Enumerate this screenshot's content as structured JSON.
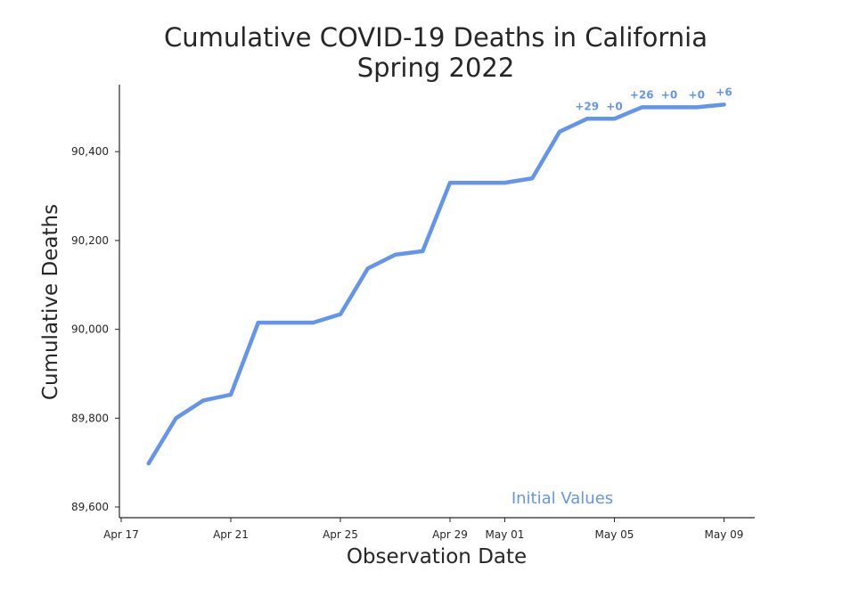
{
  "chart_data": {
    "type": "line",
    "title": "Cumulative COVID-19 Deaths in California",
    "subtitle": "Spring 2022",
    "xlabel": "Observation Date",
    "ylabel": "Cumulative Deaths",
    "x_type": "date",
    "xlim": [
      "2022-04-17",
      "2022-05-10"
    ],
    "ylim": [
      89580,
      90555
    ],
    "grid": false,
    "x_ticks": [
      {
        "date": "2022-04-17",
        "label": "Apr 17"
      },
      {
        "date": "2022-04-21",
        "label": "Apr 21"
      },
      {
        "date": "2022-04-25",
        "label": "Apr 25"
      },
      {
        "date": "2022-04-29",
        "label": "Apr 29"
      },
      {
        "date": "2022-05-01",
        "label": "May 01"
      },
      {
        "date": "2022-05-05",
        "label": "May 05"
      },
      {
        "date": "2022-05-09",
        "label": "May 09"
      }
    ],
    "y_ticks": [
      {
        "value": 89600,
        "label": "89,600"
      },
      {
        "value": 89800,
        "label": "89,800"
      },
      {
        "value": 90000,
        "label": "90,000"
      },
      {
        "value": 90200,
        "label": "90,200"
      },
      {
        "value": 90400,
        "label": "90,400"
      }
    ],
    "series": [
      {
        "name": "Initial Values",
        "color": "#6495ed",
        "x": [
          "2022-04-18",
          "2022-04-19",
          "2022-04-20",
          "2022-04-21",
          "2022-04-22",
          "2022-04-23",
          "2022-04-24",
          "2022-04-25",
          "2022-04-26",
          "2022-04-27",
          "2022-04-28",
          "2022-04-29",
          "2022-04-30",
          "2022-05-01",
          "2022-05-02",
          "2022-05-03",
          "2022-05-04",
          "2022-05-05",
          "2022-05-06",
          "2022-05-07",
          "2022-05-08",
          "2022-05-09"
        ],
        "y": [
          89698,
          89800,
          89840,
          89853,
          90015,
          90015,
          90015,
          90034,
          90137,
          90168,
          90176,
          90330,
          90330,
          90330,
          90340,
          90445,
          90474,
          90474,
          90500,
          90500,
          90500,
          90506
        ]
      }
    ],
    "annotations": [
      {
        "x": "2022-05-04",
        "text": "+29"
      },
      {
        "x": "2022-05-05",
        "text": "+0"
      },
      {
        "x": "2022-05-06",
        "text": "+26"
      },
      {
        "x": "2022-05-07",
        "text": "+0"
      },
      {
        "x": "2022-05-08",
        "text": "+0"
      },
      {
        "x": "2022-05-09",
        "text": "+6"
      }
    ],
    "legend": {
      "placement": "bottom-right",
      "entries": [
        "Initial Values"
      ]
    }
  }
}
